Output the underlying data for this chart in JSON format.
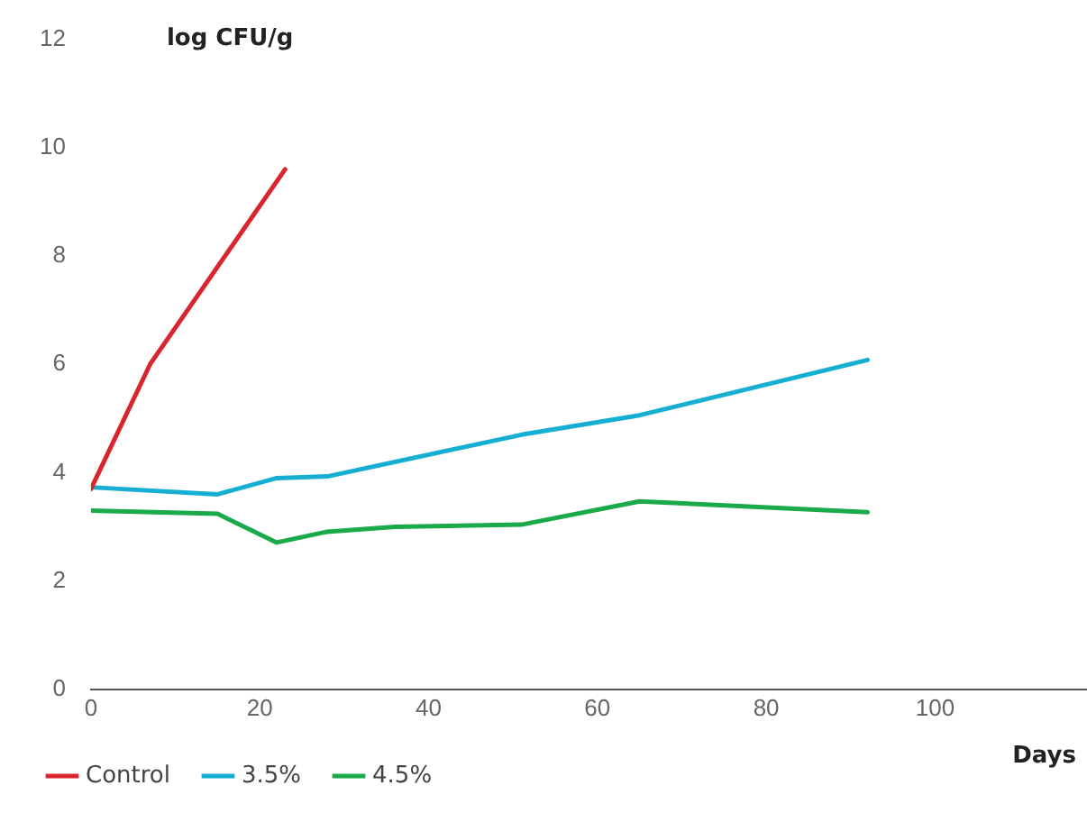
{
  "chart_data": {
    "type": "line",
    "xlabel": "Days",
    "ylabel": "log CFU/g",
    "xlim": [
      0,
      118
    ],
    "xticks": [
      0,
      20,
      40,
      60,
      80,
      100
    ],
    "ylim": [
      0,
      12
    ],
    "yticks": [
      0,
      2,
      4,
      6,
      8,
      10,
      12
    ],
    "grid": false,
    "legend": "bottom left",
    "marker": "none",
    "line_style": "solid",
    "series": [
      {
        "name": "Control",
        "color": "#d9262e",
        "x": [
          0,
          7,
          23
        ],
        "values": [
          3.7,
          6.0,
          9.6
        ]
      },
      {
        "name": "3.5%",
        "color": "#17aed4",
        "x": [
          0,
          15,
          22,
          28,
          51,
          65,
          92
        ],
        "values": [
          3.73,
          3.6,
          3.9,
          3.93,
          4.7,
          5.06,
          6.08
        ]
      },
      {
        "name": "4.5%",
        "color": "#1aaa4a",
        "x": [
          0,
          15,
          22,
          28,
          36,
          51,
          65,
          92
        ],
        "values": [
          3.3,
          3.24,
          2.71,
          2.91,
          3.0,
          3.04,
          3.47,
          3.27
        ]
      }
    ]
  }
}
